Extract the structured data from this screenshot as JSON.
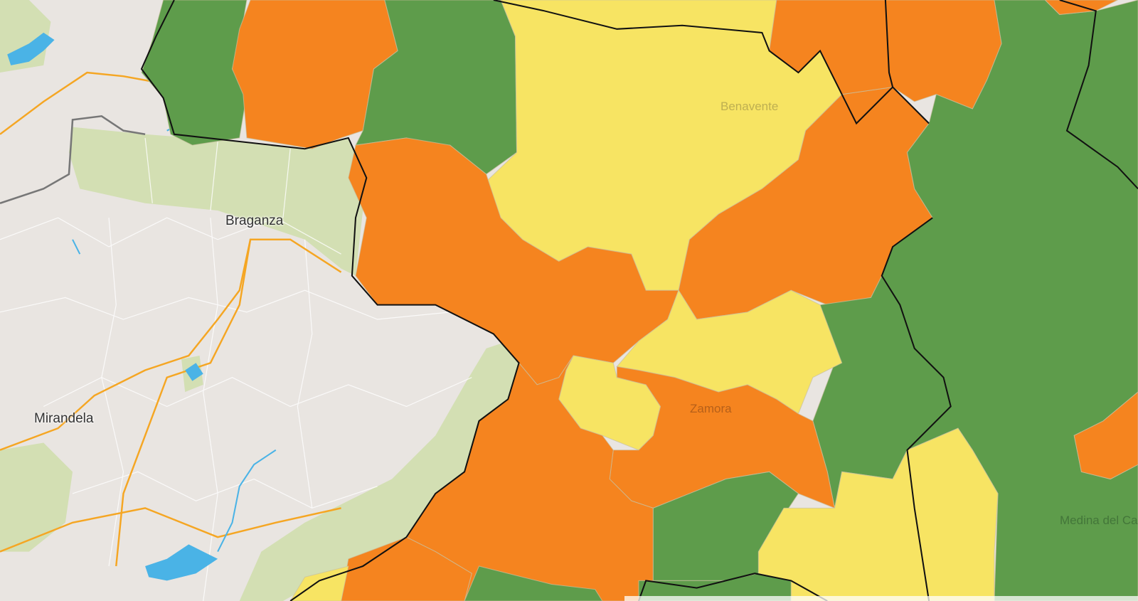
{
  "map": {
    "type": "choropleth",
    "colors": {
      "high": "#f5841f",
      "medium": "#f7e463",
      "low": "#5e9c4b",
      "land": "#e9e5e1",
      "vegetation": "#d3dfb3",
      "water": "#4ab3e6",
      "road": "#f5a623",
      "border": "#111111"
    },
    "places": [
      {
        "name": "Braganza"
      },
      {
        "name": "Mirandela"
      },
      {
        "name": "Benavente"
      },
      {
        "name": "Zamora"
      },
      {
        "name": "Medina del Campo"
      }
    ]
  }
}
